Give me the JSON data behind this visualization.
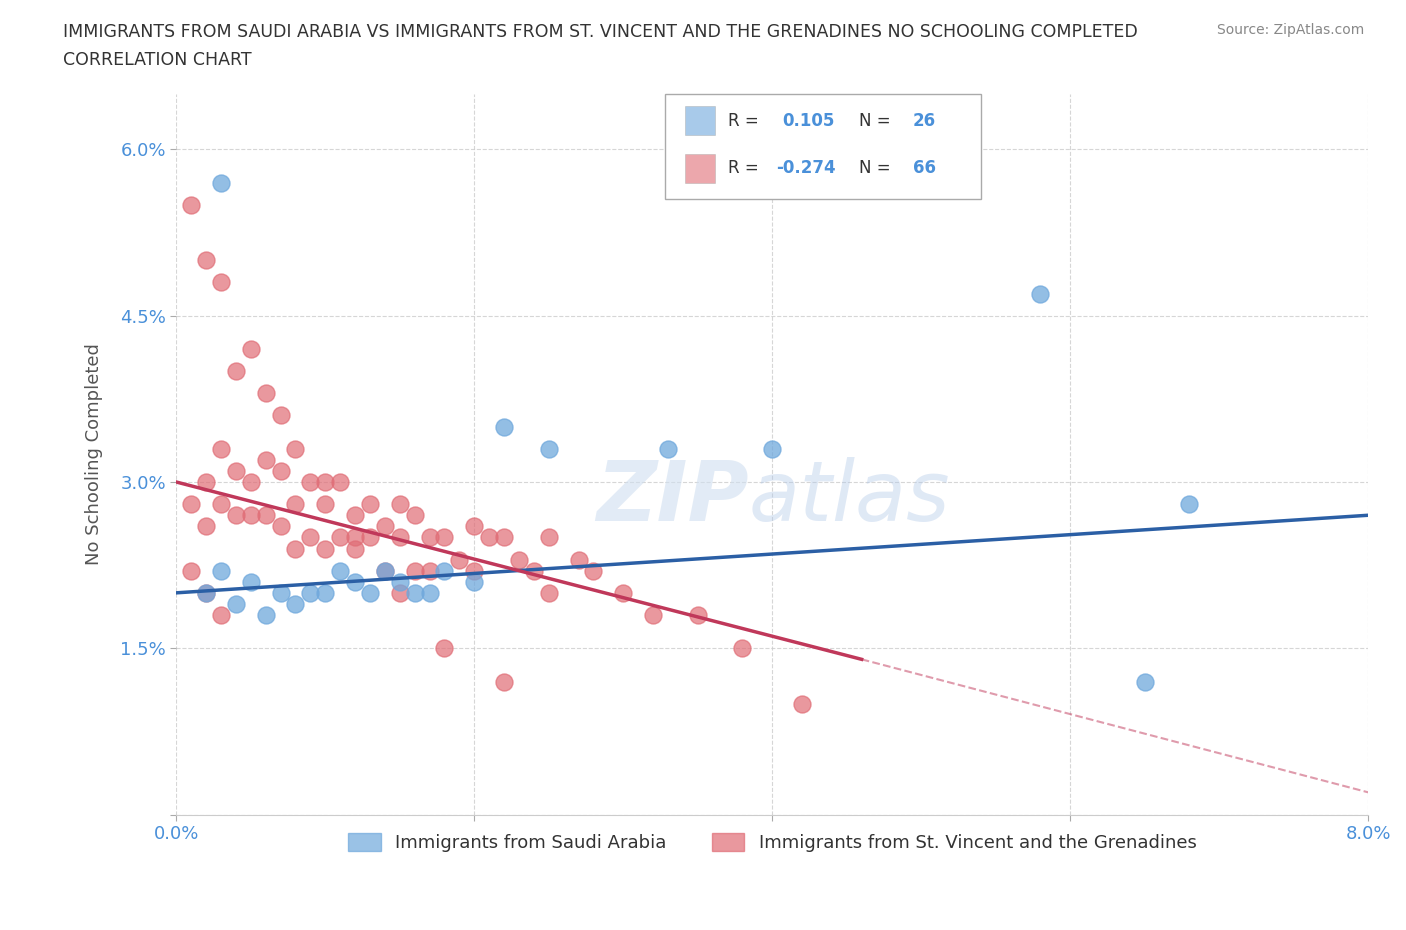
{
  "title_line1": "IMMIGRANTS FROM SAUDI ARABIA VS IMMIGRANTS FROM ST. VINCENT AND THE GRENADINES NO SCHOOLING COMPLETED",
  "title_line2": "CORRELATION CHART",
  "source_text": "Source: ZipAtlas.com",
  "ylabel": "No Schooling Completed",
  "xlim": [
    0.0,
    0.08
  ],
  "ylim": [
    0.0,
    0.065
  ],
  "xticks": [
    0.0,
    0.02,
    0.04,
    0.06,
    0.08
  ],
  "xticklabels": [
    "0.0%",
    "",
    "",
    "",
    "8.0%"
  ],
  "yticks": [
    0.0,
    0.015,
    0.03,
    0.045,
    0.06
  ],
  "yticklabels": [
    "",
    "1.5%",
    "3.0%",
    "4.5%",
    "6.0%"
  ],
  "grid_color": "#cccccc",
  "background_color": "#ffffff",
  "series1_color": "#6fa8dc",
  "series2_color": "#e06c75",
  "series1_label": "Immigrants from Saudi Arabia",
  "series2_label": "Immigrants from St. Vincent and the Grenadines",
  "R1": 0.105,
  "N1": 26,
  "R2": -0.274,
  "N2": 66,
  "series1_x": [
    0.002,
    0.003,
    0.004,
    0.005,
    0.006,
    0.007,
    0.008,
    0.009,
    0.01,
    0.011,
    0.012,
    0.013,
    0.014,
    0.015,
    0.016,
    0.017,
    0.018,
    0.02,
    0.022,
    0.025,
    0.033,
    0.04,
    0.058,
    0.065,
    0.068,
    0.003
  ],
  "series1_y": [
    0.02,
    0.022,
    0.019,
    0.021,
    0.018,
    0.02,
    0.019,
    0.02,
    0.02,
    0.022,
    0.021,
    0.02,
    0.022,
    0.021,
    0.02,
    0.02,
    0.022,
    0.021,
    0.035,
    0.033,
    0.033,
    0.033,
    0.047,
    0.012,
    0.028,
    0.057
  ],
  "series2_x": [
    0.001,
    0.002,
    0.002,
    0.003,
    0.003,
    0.004,
    0.004,
    0.005,
    0.005,
    0.006,
    0.006,
    0.007,
    0.007,
    0.008,
    0.008,
    0.009,
    0.009,
    0.01,
    0.01,
    0.011,
    0.011,
    0.012,
    0.012,
    0.013,
    0.013,
    0.014,
    0.014,
    0.015,
    0.015,
    0.016,
    0.016,
    0.017,
    0.017,
    0.018,
    0.019,
    0.02,
    0.02,
    0.021,
    0.022,
    0.023,
    0.024,
    0.025,
    0.025,
    0.027,
    0.028,
    0.03,
    0.032,
    0.035,
    0.038,
    0.042,
    0.001,
    0.002,
    0.003,
    0.004,
    0.005,
    0.006,
    0.007,
    0.008,
    0.01,
    0.012,
    0.015,
    0.018,
    0.022,
    0.001,
    0.002,
    0.003
  ],
  "series2_y": [
    0.028,
    0.03,
    0.026,
    0.033,
    0.028,
    0.031,
    0.027,
    0.03,
    0.027,
    0.032,
    0.027,
    0.031,
    0.026,
    0.028,
    0.024,
    0.03,
    0.025,
    0.028,
    0.024,
    0.03,
    0.025,
    0.027,
    0.024,
    0.028,
    0.025,
    0.026,
    0.022,
    0.028,
    0.025,
    0.027,
    0.022,
    0.025,
    0.022,
    0.025,
    0.023,
    0.026,
    0.022,
    0.025,
    0.025,
    0.023,
    0.022,
    0.025,
    0.02,
    0.023,
    0.022,
    0.02,
    0.018,
    0.018,
    0.015,
    0.01,
    0.055,
    0.05,
    0.048,
    0.04,
    0.042,
    0.038,
    0.036,
    0.033,
    0.03,
    0.025,
    0.02,
    0.015,
    0.012,
    0.022,
    0.02,
    0.018
  ],
  "trend1_x0": 0.0,
  "trend1_x1": 0.08,
  "trend1_y0": 0.02,
  "trend1_y1": 0.027,
  "trend2_x0": 0.0,
  "trend2_x1": 0.046,
  "trend2_y0": 0.03,
  "trend2_y1": 0.014,
  "trend2_dash_x0": 0.046,
  "trend2_dash_x1": 0.08,
  "trend2_dash_y0": 0.014,
  "trend2_dash_y1": 0.002
}
